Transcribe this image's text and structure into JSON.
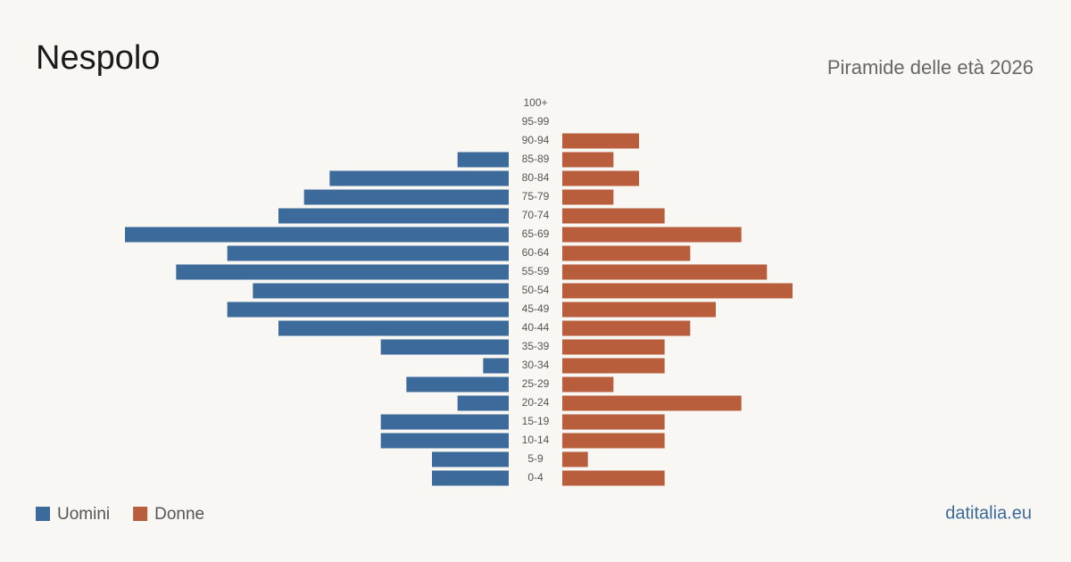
{
  "chart_data": {
    "type": "pyramid",
    "title": "Nespolo",
    "subtitle": "Piramide delle età 2026",
    "source": "datitalia.eu",
    "categories": [
      "100+",
      "95-99",
      "90-94",
      "85-89",
      "80-84",
      "75-79",
      "70-74",
      "65-69",
      "60-64",
      "55-59",
      "50-54",
      "45-49",
      "40-44",
      "35-39",
      "30-34",
      "25-29",
      "20-24",
      "15-19",
      "10-14",
      "5-9",
      "0-4"
    ],
    "series": [
      {
        "name": "Uomini",
        "color": "#3b6a9b",
        "values": [
          0,
          0,
          0,
          2,
          7,
          8,
          9,
          15,
          11,
          13,
          10,
          11,
          9,
          5,
          1,
          4,
          2,
          5,
          5,
          3,
          3
        ]
      },
      {
        "name": "Donne",
        "color": "#b85e3d",
        "values": [
          0,
          0,
          3,
          2,
          3,
          2,
          4,
          7,
          5,
          8,
          9,
          6,
          5,
          4,
          4,
          2,
          7,
          4,
          4,
          1,
          4
        ]
      }
    ]
  }
}
